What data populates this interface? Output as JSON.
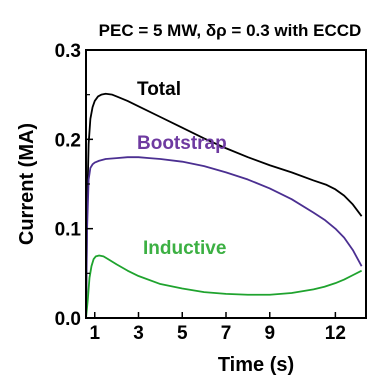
{
  "chart_data": {
    "type": "line",
    "title": "PEC = 5 MW, δρ = 0.3 with ECCD",
    "xlabel": "Time (s)",
    "ylabel": "Current (MA)",
    "xlim": [
      0.6,
      13.4
    ],
    "ylim": [
      0,
      0.3
    ],
    "xticks": [
      1,
      3,
      5,
      7,
      9,
      12
    ],
    "xtick_labels": [
      "1",
      "3",
      "5",
      "7",
      "9",
      "12"
    ],
    "yticks": [
      0.0,
      0.1,
      0.2,
      0.3
    ],
    "ytick_labels": [
      "0.0",
      "0.1",
      "0.2",
      "0.3"
    ],
    "grid": false,
    "legend": "inline labels",
    "series": [
      {
        "name": "Total",
        "color": "#000000",
        "x": [
          0.6,
          0.65,
          0.72,
          0.8,
          0.9,
          1.0,
          1.15,
          1.3,
          1.5,
          1.8,
          2.0,
          2.5,
          3.0,
          4.0,
          5.0,
          6.0,
          7.0,
          8.0,
          9.0,
          10.0,
          11.0,
          11.6,
          12.0,
          12.4,
          12.8,
          13.2
        ],
        "y": [
          0.0,
          0.12,
          0.195,
          0.223,
          0.236,
          0.243,
          0.248,
          0.25,
          0.251,
          0.25,
          0.248,
          0.243,
          0.237,
          0.225,
          0.213,
          0.201,
          0.19,
          0.18,
          0.171,
          0.163,
          0.154,
          0.149,
          0.144,
          0.137,
          0.127,
          0.114
        ]
      },
      {
        "name": "Bootstrap",
        "color": "#4b2f91",
        "x": [
          0.6,
          0.65,
          0.72,
          0.8,
          0.9,
          1.0,
          1.2,
          1.5,
          2.0,
          2.5,
          3.0,
          3.5,
          4.0,
          5.0,
          6.0,
          7.0,
          8.0,
          9.0,
          10.0,
          11.0,
          11.5,
          12.0,
          12.4,
          12.8,
          13.2
        ],
        "y": [
          0.0,
          0.1,
          0.155,
          0.168,
          0.172,
          0.174,
          0.176,
          0.178,
          0.179,
          0.18,
          0.18,
          0.179,
          0.178,
          0.175,
          0.17,
          0.163,
          0.155,
          0.145,
          0.133,
          0.118,
          0.11,
          0.1,
          0.09,
          0.076,
          0.058
        ]
      },
      {
        "name": "Inductive",
        "color": "#1fa32e",
        "x": [
          0.6,
          0.68,
          0.76,
          0.85,
          0.95,
          1.05,
          1.2,
          1.4,
          1.6,
          2.0,
          2.5,
          3.0,
          4.0,
          5.0,
          6.0,
          7.0,
          8.0,
          9.0,
          10.0,
          11.0,
          11.5,
          12.0,
          12.4,
          12.8,
          13.2
        ],
        "y": [
          0.0,
          0.02,
          0.045,
          0.058,
          0.066,
          0.069,
          0.07,
          0.069,
          0.066,
          0.06,
          0.053,
          0.047,
          0.038,
          0.033,
          0.029,
          0.027,
          0.026,
          0.026,
          0.028,
          0.032,
          0.035,
          0.039,
          0.043,
          0.048,
          0.053
        ]
      }
    ]
  }
}
